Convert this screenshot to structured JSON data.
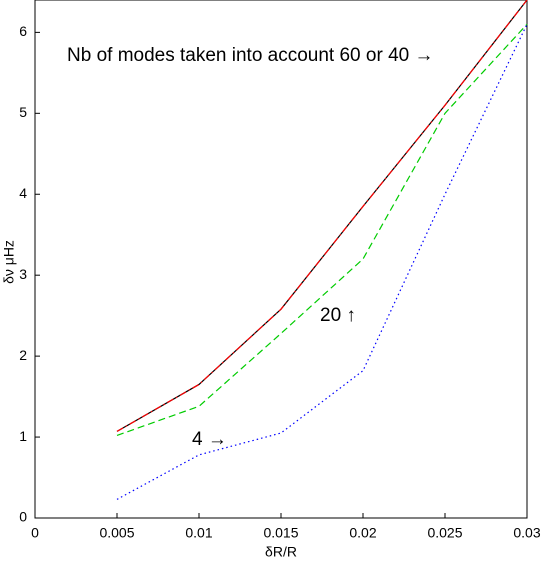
{
  "chart_data": {
    "type": "line",
    "x_label": "δR/R",
    "y_label": "δν μHz",
    "annotations": [
      "Nb of modes taken into account 60 or 40 →",
      "20 ↑",
      "4 →"
    ],
    "x": [
      0.005,
      0.01,
      0.015,
      0.02,
      0.025,
      0.03
    ],
    "series": [
      {
        "color": "#000000",
        "linestyle": "solid",
        "values": [
          1.07,
          1.65,
          2.58,
          3.85,
          5.1,
          6.4
        ]
      },
      {
        "color": "#ff0000",
        "linestyle": "dashdot",
        "values": [
          1.07,
          1.65,
          2.58,
          3.85,
          5.1,
          6.4
        ]
      },
      {
        "color": "#00cc00",
        "linestyle": "dashed",
        "values": [
          1.02,
          1.38,
          2.28,
          3.2,
          5.0,
          6.1
        ]
      },
      {
        "color": "#0000ff",
        "linestyle": "dotted",
        "values": [
          0.23,
          0.78,
          1.05,
          1.82,
          4.0,
          6.1
        ]
      }
    ],
    "xlim": [
      0,
      0.03
    ],
    "ylim": [
      0,
      6.4
    ],
    "xticks": [
      0,
      0.005,
      0.01,
      0.015,
      0.02,
      0.025,
      0.03
    ],
    "yticks": [
      0,
      1,
      2,
      3,
      4,
      5,
      6
    ],
    "grid": false
  }
}
